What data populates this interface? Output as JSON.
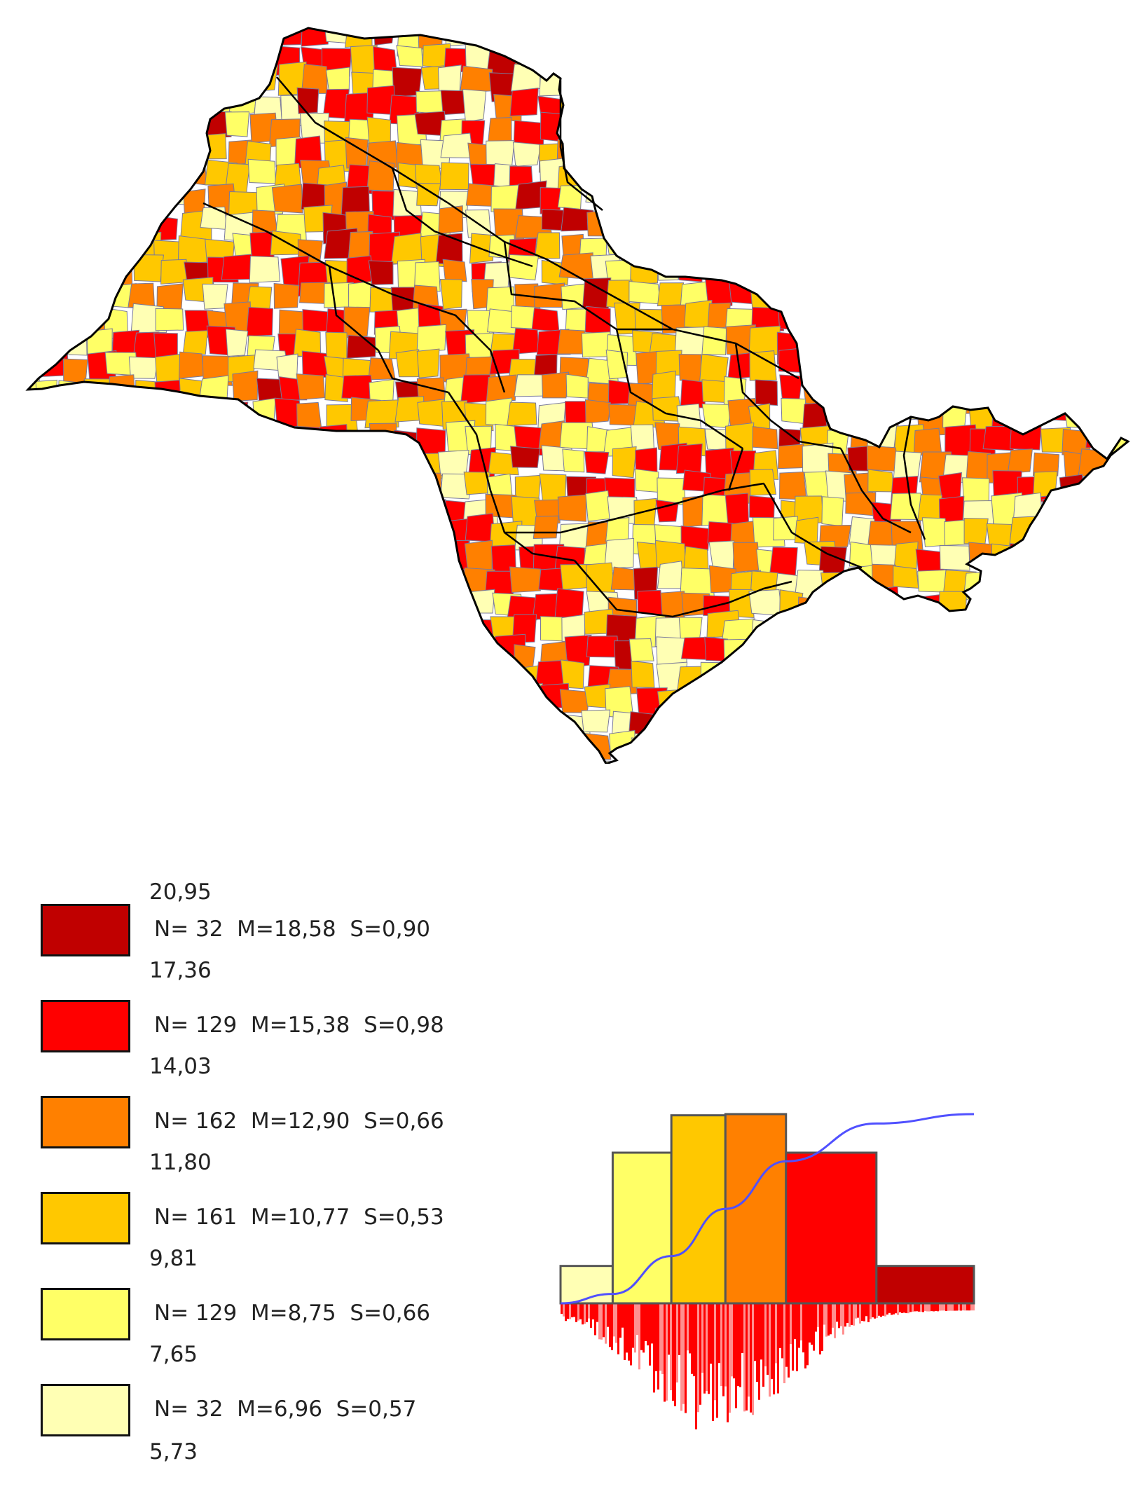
{
  "map": {
    "region": "state-map",
    "fill_colors": [
      "#c00000",
      "#ff0000",
      "#ff8000",
      "#ffc800",
      "#ffff66",
      "#ffffb4"
    ],
    "outline_color": "#000000",
    "municipality_border_color": "#7a7a9a"
  },
  "legend": {
    "breaks": [
      "20,95",
      "17,36",
      "14,03",
      "11,80",
      "9,81",
      "7,65",
      "5,73"
    ],
    "classes": [
      {
        "color": "#c00000",
        "stats": "N= 32  M=18,58  S=0,90",
        "count": 32
      },
      {
        "color": "#ff0000",
        "stats": "N= 129  M=15,38  S=0,98",
        "count": 129
      },
      {
        "color": "#ff8000",
        "stats": "N= 162  M=12,90  S=0,66",
        "count": 162
      },
      {
        "color": "#ffc800",
        "stats": "N= 161  M=10,77  S=0,53",
        "count": 161
      },
      {
        "color": "#ffff66",
        "stats": "N= 129  M=8,75  S=0,66",
        "count": 129
      },
      {
        "color": "#ffffb4",
        "stats": "N= 32  M=6,96  S=0,57",
        "count": 32
      }
    ]
  },
  "histogram": {
    "type": "bar",
    "bins": [
      {
        "from": 5.73,
        "to": 7.65,
        "count": 32,
        "color": "#ffffb4"
      },
      {
        "from": 7.65,
        "to": 9.81,
        "count": 129,
        "color": "#ffff66"
      },
      {
        "from": 9.81,
        "to": 11.8,
        "count": 161,
        "color": "#ffc800"
      },
      {
        "from": 11.8,
        "to": 14.03,
        "count": 162,
        "color": "#ff8000"
      },
      {
        "from": 14.03,
        "to": 17.36,
        "count": 129,
        "color": "#ff0000"
      },
      {
        "from": 17.36,
        "to": 20.95,
        "count": 32,
        "color": "#c00000"
      }
    ],
    "curve_color": "#5050ff",
    "distribution_color": "#ff0000"
  }
}
